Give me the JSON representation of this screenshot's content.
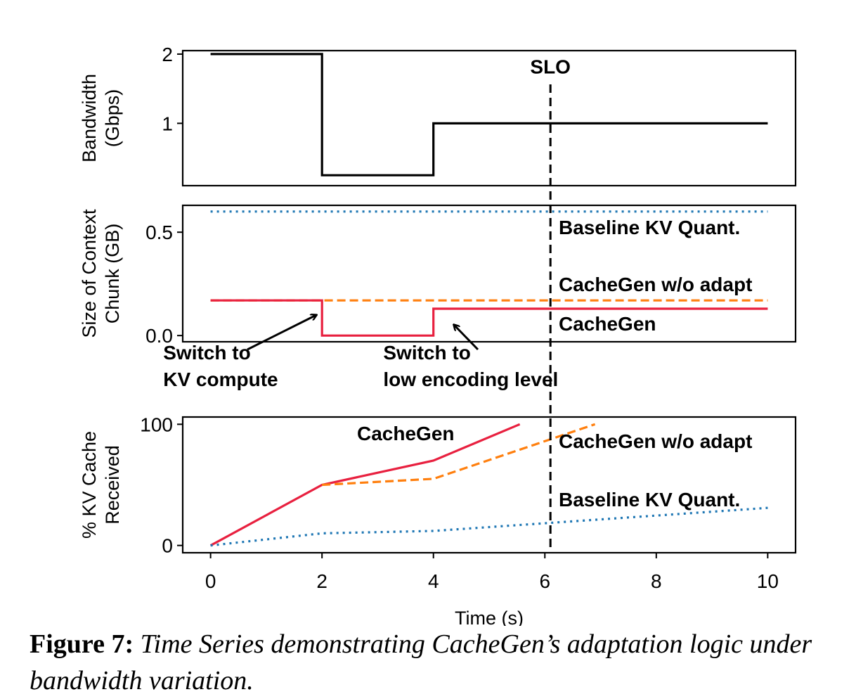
{
  "chart_data": [
    {
      "type": "line",
      "ylabel": [
        "Bandwidth",
        "(Gbps)"
      ],
      "xlim": [
        -0.5,
        10.5
      ],
      "ylim": [
        0.1,
        2.05
      ],
      "yticks": [
        1,
        2
      ],
      "ytick_labels": [
        "1",
        "2"
      ],
      "series": [
        {
          "name": "",
          "color": "#000000",
          "style": "solid",
          "x": [
            0,
            2,
            2,
            4,
            4,
            10
          ],
          "y": [
            2,
            2,
            0.25,
            0.25,
            1,
            1
          ]
        }
      ],
      "annotations": [
        {
          "text": "SLO",
          "x": 6.1,
          "y": 1.8
        }
      ]
    },
    {
      "type": "line",
      "ylabel": [
        "Size of Context",
        "Chunk (GB)"
      ],
      "xlim": [
        -0.5,
        10.5
      ],
      "ylim": [
        -0.03,
        0.63
      ],
      "yticks": [
        0.0,
        0.5
      ],
      "ytick_labels": [
        "0.0",
        "0.5"
      ],
      "series": [
        {
          "name": "Baseline KV Quant.",
          "color": "#1f77b4",
          "style": "dotted",
          "x": [
            0,
            10
          ],
          "y": [
            0.6,
            0.6
          ]
        },
        {
          "name": "CacheGen w/o adapt",
          "color": "#ff7f0e",
          "style": "dashed",
          "x": [
            0,
            10
          ],
          "y": [
            0.17,
            0.17
          ]
        },
        {
          "name": "CacheGen",
          "color": "#e8203f",
          "style": "solid",
          "x": [
            0,
            2,
            2,
            4,
            4,
            10
          ],
          "y": [
            0.17,
            0.17,
            0.0,
            0.0,
            0.13,
            0.13
          ]
        }
      ],
      "annotations": [
        {
          "text": [
            "Switch to",
            "KV compute"
          ],
          "x": -0.85,
          "y": -0.115
        },
        {
          "text": [
            "Switch to",
            "low encoding level"
          ],
          "x": 3.1,
          "y": -0.115
        }
      ]
    },
    {
      "type": "line",
      "xlabel": "Time (s)",
      "ylabel": [
        "% KV Cache",
        "Received"
      ],
      "xlim": [
        -0.5,
        10.5
      ],
      "ylim": [
        -6,
        106
      ],
      "yticks": [
        0,
        100
      ],
      "ytick_labels": [
        "0",
        "100"
      ],
      "xticks": [
        0,
        2,
        4,
        6,
        8,
        10
      ],
      "xtick_labels": [
        "0",
        "2",
        "4",
        "6",
        "8",
        "10"
      ],
      "series": [
        {
          "name": "CacheGen",
          "color": "#e8203f",
          "style": "solid",
          "x": [
            0,
            2,
            4,
            5.55
          ],
          "y": [
            0,
            50,
            70,
            100
          ]
        },
        {
          "name": "CacheGen w/o adapt",
          "color": "#ff7f0e",
          "style": "dashed",
          "x": [
            2,
            4,
            6.9
          ],
          "y": [
            50,
            55,
            100
          ]
        },
        {
          "name": "Baseline KV Quant.",
          "color": "#1f77b4",
          "style": "dotted",
          "x": [
            0,
            2,
            4,
            10
          ],
          "y": [
            0,
            10,
            12,
            31
          ]
        }
      ]
    }
  ],
  "slo": {
    "label": "SLO",
    "x": 6.1
  },
  "caption": {
    "label": "Figure 7:",
    "text": "Time Series demonstrating CacheGen’s adaptation logic under bandwidth variation."
  }
}
